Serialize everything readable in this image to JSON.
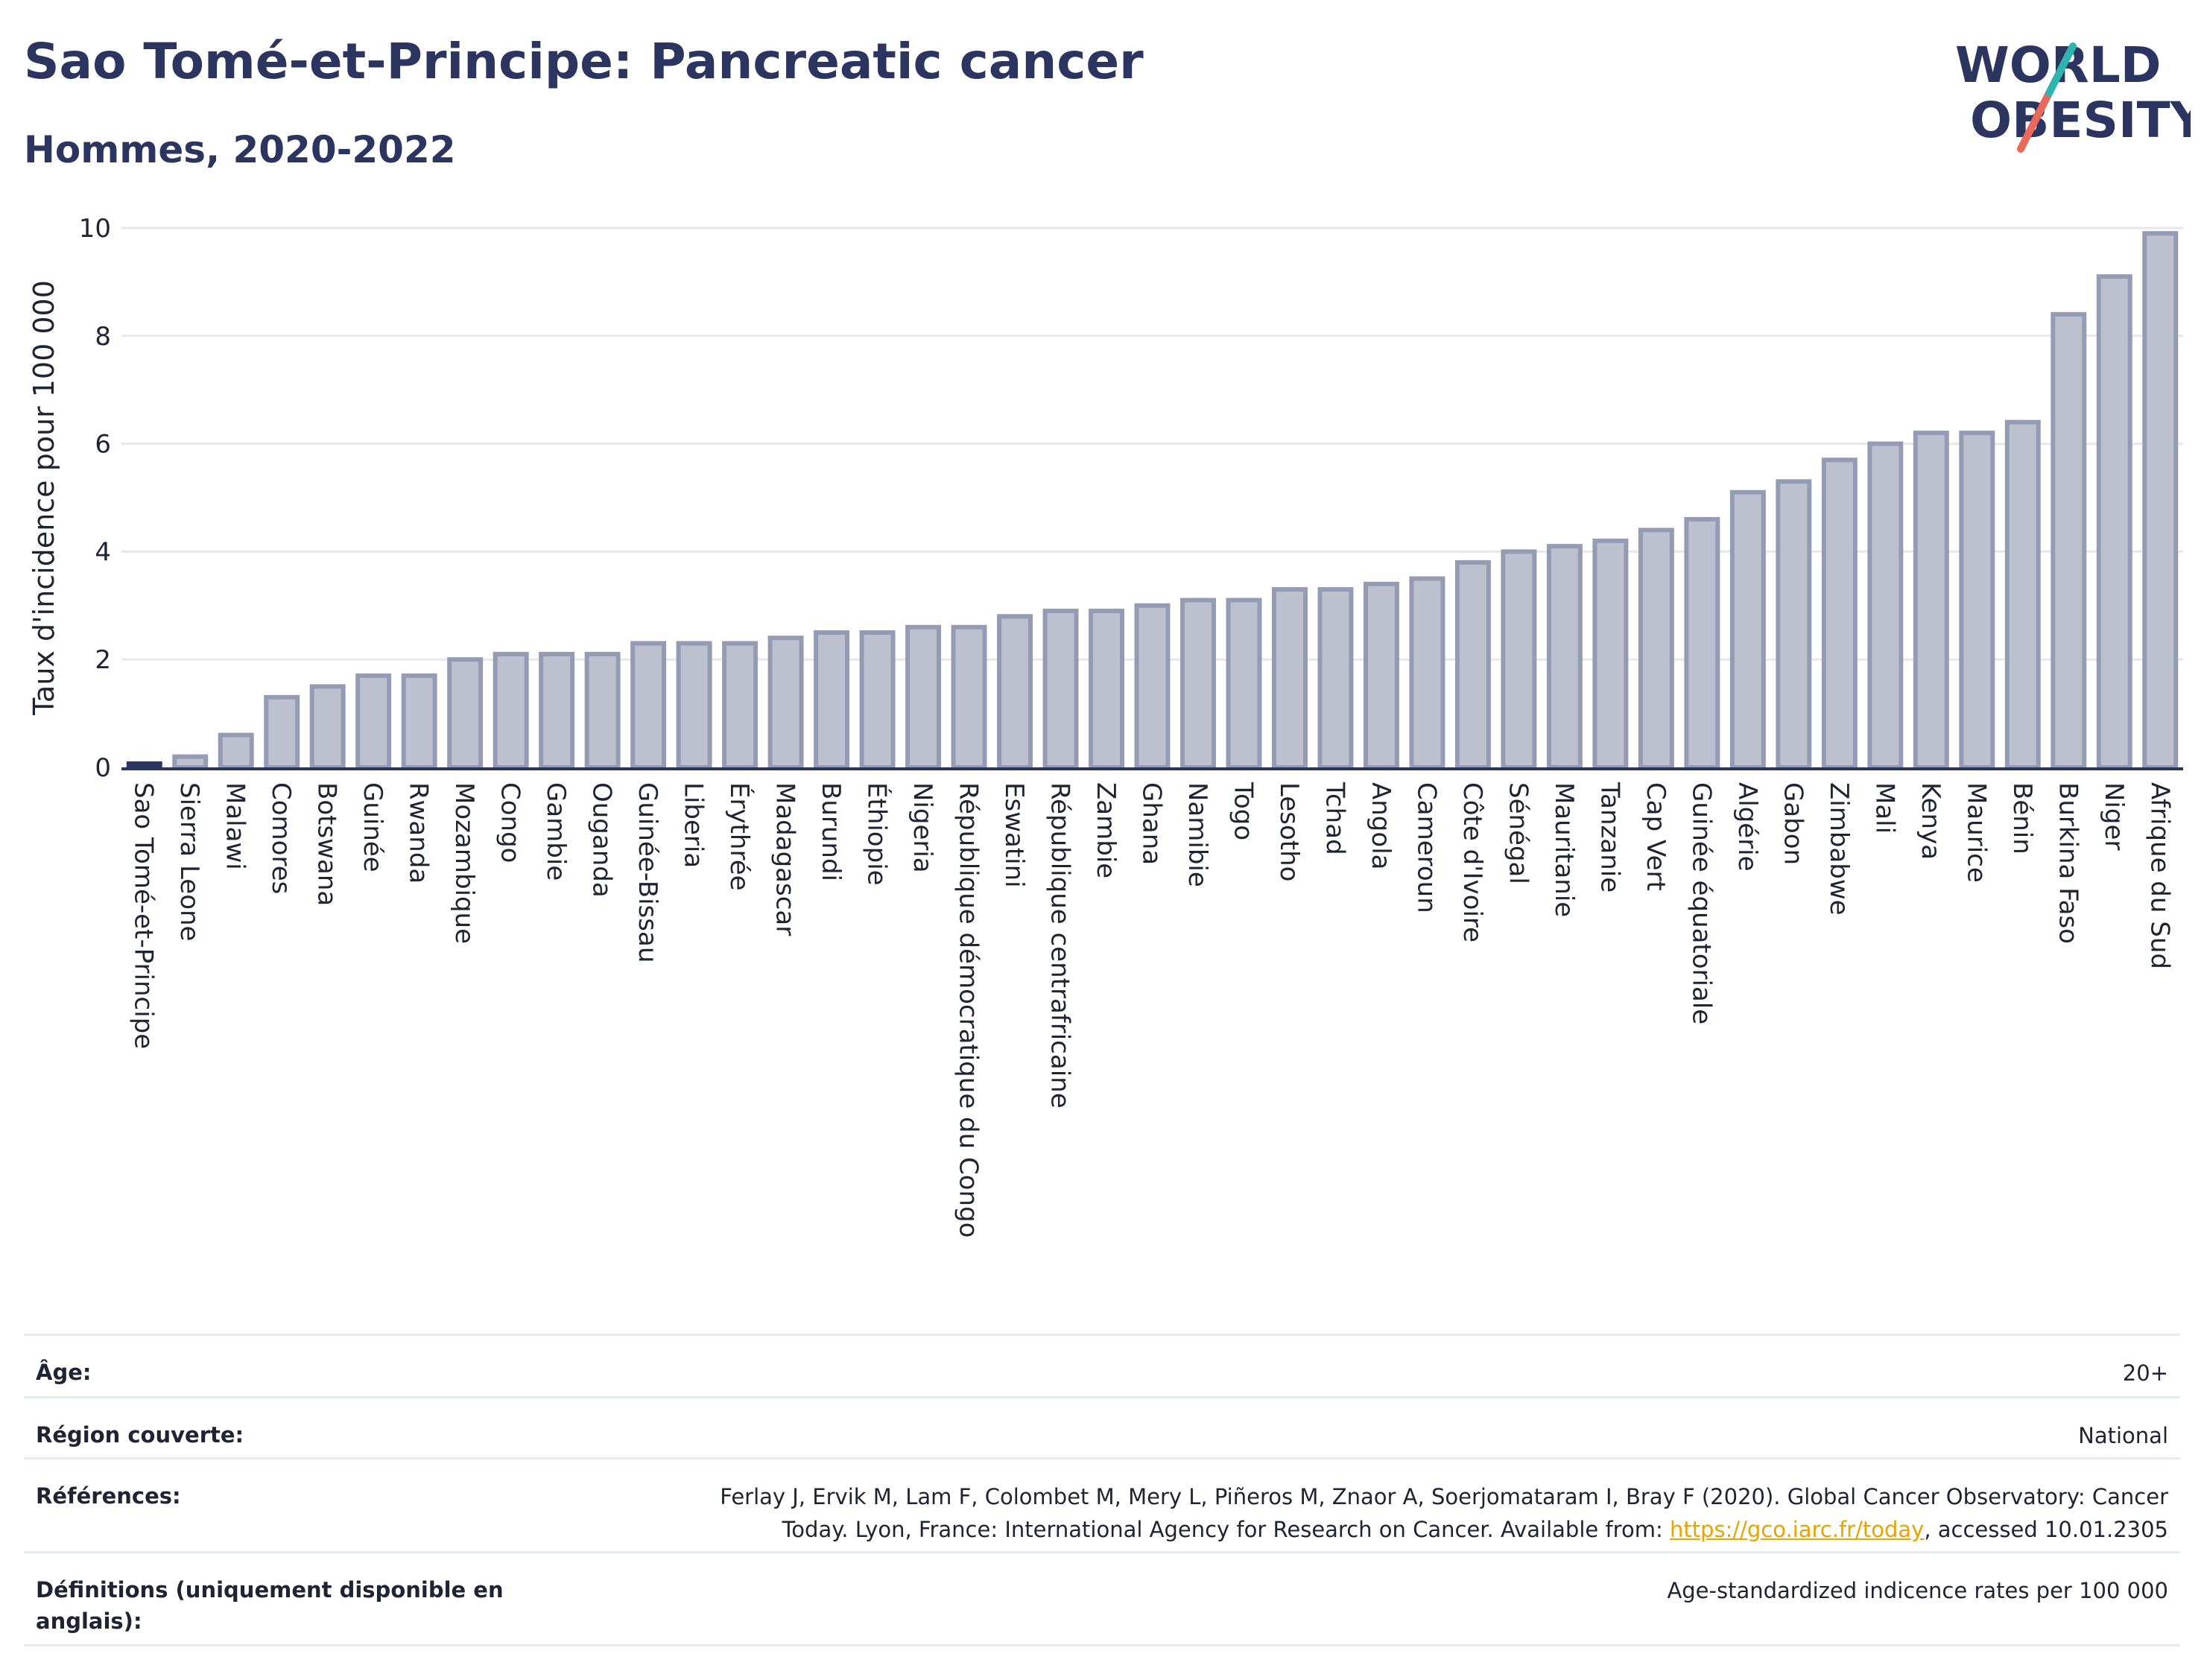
{
  "header": {
    "title": "Sao Tomé-et-Principe: Pancreatic cancer",
    "subtitle": "Hommes, 2020-2022"
  },
  "logo": {
    "line1": "WORLD",
    "line2": "OBESITY",
    "color_text": "#2b3560",
    "color_accent_teal": "#2fb5b0",
    "color_accent_red": "#e96a5b"
  },
  "chart_data": {
    "type": "bar",
    "ylabel": "Taux d'incidence pour 100 000",
    "ylim": [
      0,
      10
    ],
    "yticks": [
      0,
      2,
      4,
      6,
      8,
      10
    ],
    "grid": true,
    "highlight_category": "Sao Tomé-et-Principe",
    "colors": {
      "bar_fill": "#bcc0cf",
      "bar_stroke": "#959bb3",
      "highlight": "#2b3560",
      "grid": "#e6e8ee"
    },
    "categories": [
      "Sao Tomé-et-Principe",
      "Sierra Leone",
      "Malawi",
      "Comores",
      "Botswana",
      "Guinée",
      "Rwanda",
      "Mozambique",
      "Congo",
      "Gambie",
      "Ouganda",
      "Guinée-Bissau",
      "Liberia",
      "Érythrée",
      "Madagascar",
      "Burundi",
      "Éthiopie",
      "Nigeria",
      "République démocratique du Congo",
      "Eswatini",
      "République centrafricaine",
      "Zambie",
      "Ghana",
      "Namibie",
      "Togo",
      "Lesotho",
      "Tchad",
      "Angola",
      "Cameroun",
      "Côte d'Ivoire",
      "Sénégal",
      "Mauritanie",
      "Tanzanie",
      "Cap Vert",
      "Guinée équatoriale",
      "Algérie",
      "Gabon",
      "Zimbabwe",
      "Mali",
      "Kenya",
      "Maurice",
      "Bénin",
      "Burkina Faso",
      "Niger",
      "Afrique du Sud"
    ],
    "values": [
      0.0,
      0.2,
      0.6,
      1.3,
      1.5,
      1.7,
      1.7,
      2.0,
      2.1,
      2.1,
      2.1,
      2.3,
      2.3,
      2.3,
      2.4,
      2.5,
      2.5,
      2.6,
      2.6,
      2.8,
      2.9,
      2.9,
      3.0,
      3.1,
      3.1,
      3.3,
      3.3,
      3.4,
      3.5,
      3.8,
      4.0,
      4.1,
      4.2,
      4.4,
      4.6,
      5.1,
      5.3,
      5.7,
      6.0,
      6.2,
      6.2,
      6.4,
      8.4,
      9.1,
      9.9
    ]
  },
  "meta": {
    "age_label": "Âge:",
    "age_value": "20+",
    "region_label": "Région couverte:",
    "region_value": "National",
    "references_label": "Références:",
    "references_line1": "Ferlay J, Ervik M, Lam F, Colombet M, Mery L, Piñeros M, Znaor A, Soerjomataram I, Bray F (2020). Global Cancer Observatory: Cancer",
    "references_line2_pre": "Today. Lyon, France: International Agency for Research on Cancer. Available from: ",
    "references_link": "https://gco.iarc.fr/today",
    "references_line2_post": ", accessed 10.01.2305",
    "definitions_label": "Définitions (uniquement disponible en anglais):",
    "definitions_value": "Age-standardized indicence rates per 100 000"
  }
}
